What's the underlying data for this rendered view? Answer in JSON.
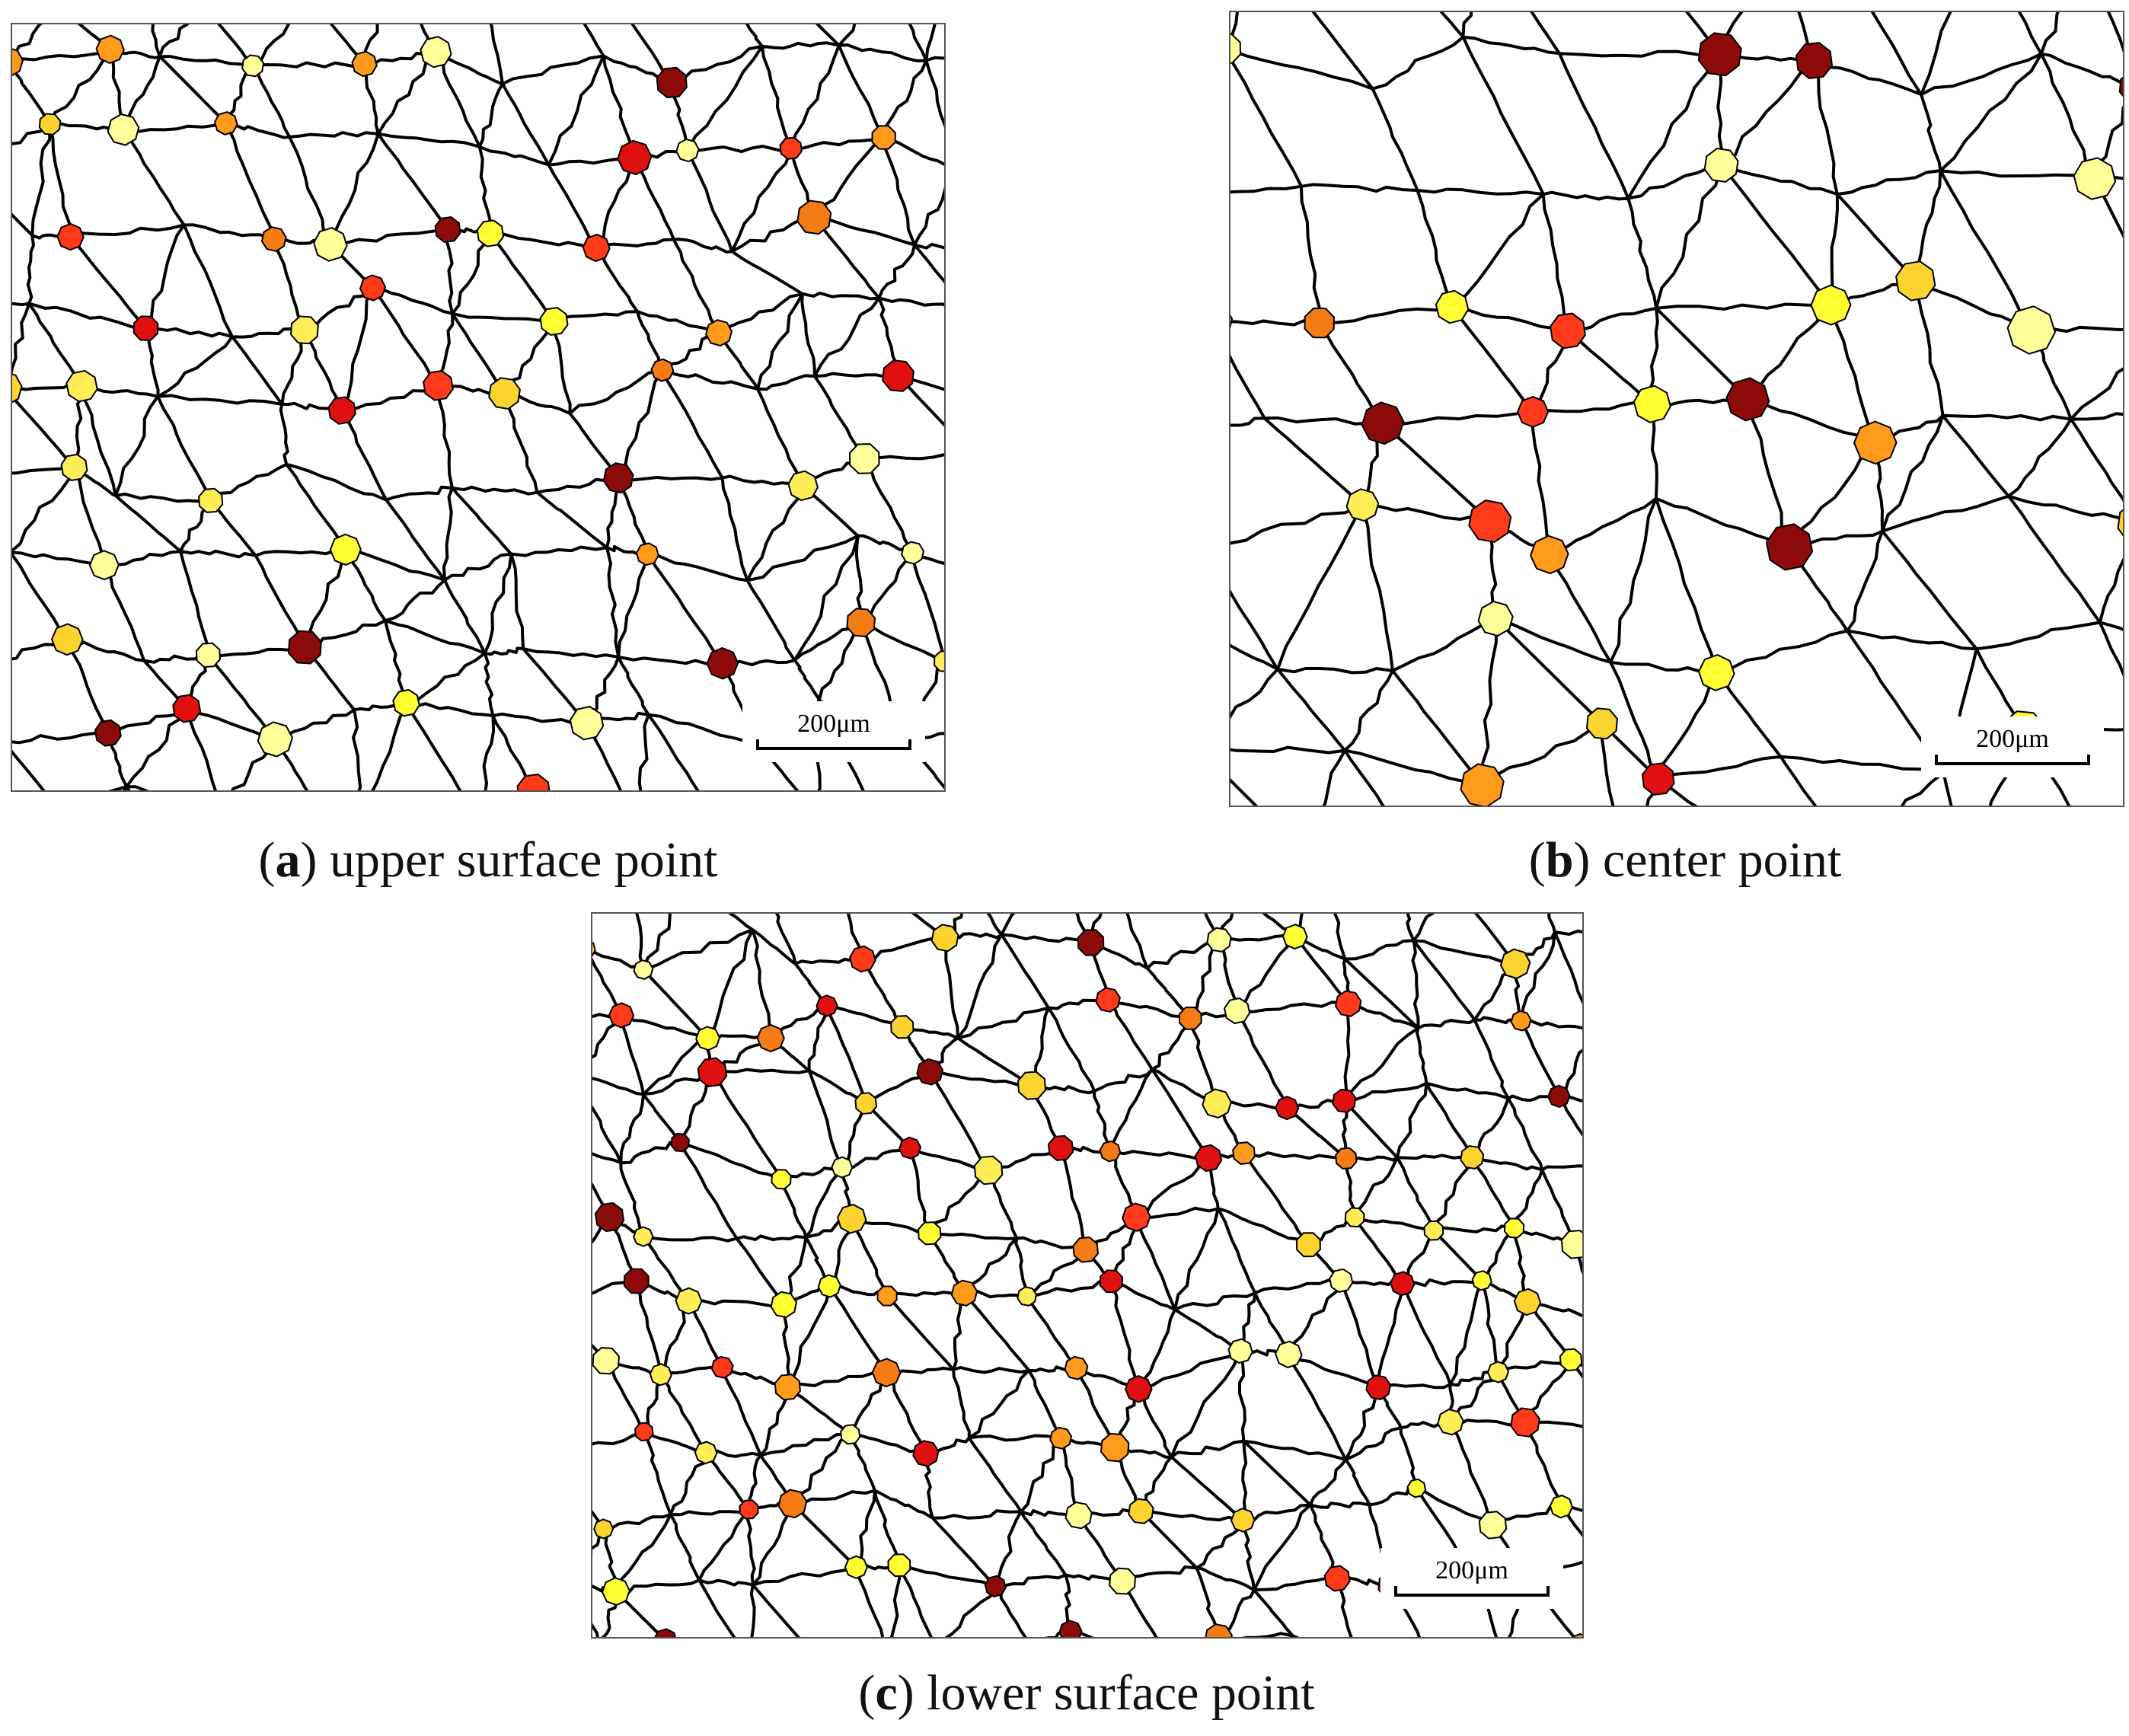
{
  "panels": [
    {
      "label": "a",
      "caption": "upper surface point",
      "scale_bar": "200μm"
    },
    {
      "label": "b",
      "caption": "center point",
      "scale_bar": "200μm"
    },
    {
      "label": "c",
      "caption": "lower surface point",
      "scale_bar": "200μm"
    }
  ]
}
